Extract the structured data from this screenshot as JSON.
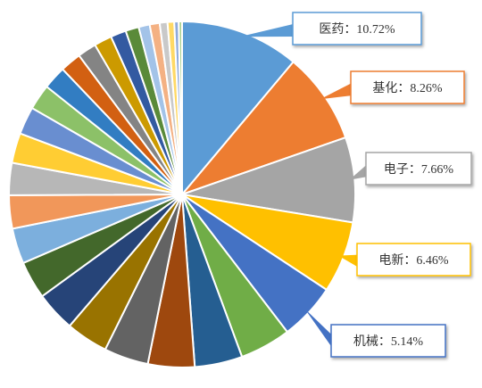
{
  "chart_data": {
    "type": "pie",
    "slices": [
      {
        "label": "医药",
        "value": 10.72,
        "color": "#5B9BD5",
        "callout": "医药：10.72%"
      },
      {
        "label": "基化",
        "value": 8.26,
        "color": "#ED7D31",
        "callout": "基化：8.26%"
      },
      {
        "label": "电子",
        "value": 7.66,
        "color": "#A5A5A5",
        "callout": "电子：7.66%"
      },
      {
        "label": "电新",
        "value": 6.46,
        "color": "#FFC000",
        "callout": "电新：6.46%"
      },
      {
        "label": "机械",
        "value": 5.14,
        "color": "#4472C4",
        "callout": "机械：5.14%"
      },
      {
        "label": "",
        "value": 4.6,
        "color": "#70AD47"
      },
      {
        "label": "",
        "value": 4.3,
        "color": "#255E91"
      },
      {
        "label": "",
        "value": 4.2,
        "color": "#9E480E"
      },
      {
        "label": "",
        "value": 4.0,
        "color": "#636363"
      },
      {
        "label": "",
        "value": 3.8,
        "color": "#997300"
      },
      {
        "label": "",
        "value": 3.6,
        "color": "#264478"
      },
      {
        "label": "",
        "value": 3.4,
        "color": "#43682B"
      },
      {
        "label": "",
        "value": 3.2,
        "color": "#7CAFDD"
      },
      {
        "label": "",
        "value": 3.0,
        "color": "#F1975A"
      },
      {
        "label": "",
        "value": 2.9,
        "color": "#B7B7B7"
      },
      {
        "label": "",
        "value": 2.7,
        "color": "#FFCD33"
      },
      {
        "label": "",
        "value": 2.5,
        "color": "#698ED0"
      },
      {
        "label": "",
        "value": 2.3,
        "color": "#8CC168"
      },
      {
        "label": "",
        "value": 2.1,
        "color": "#327DC2"
      },
      {
        "label": "",
        "value": 1.9,
        "color": "#D26012"
      },
      {
        "label": "",
        "value": 1.7,
        "color": "#848484"
      },
      {
        "label": "",
        "value": 1.6,
        "color": "#CC9A00"
      },
      {
        "label": "",
        "value": 1.4,
        "color": "#335AA1"
      },
      {
        "label": "",
        "value": 1.2,
        "color": "#5A8A39"
      },
      {
        "label": "",
        "value": 1.0,
        "color": "#A3C3E8"
      },
      {
        "label": "",
        "value": 0.9,
        "color": "#F4B183"
      },
      {
        "label": "",
        "value": 0.7,
        "color": "#C9C9C9"
      },
      {
        "label": "",
        "value": 0.6,
        "color": "#FFD966"
      },
      {
        "label": "",
        "value": 0.4,
        "color": "#8FAADC"
      },
      {
        "label": "",
        "value": 0.3,
        "color": "#A9D18E"
      }
    ]
  }
}
